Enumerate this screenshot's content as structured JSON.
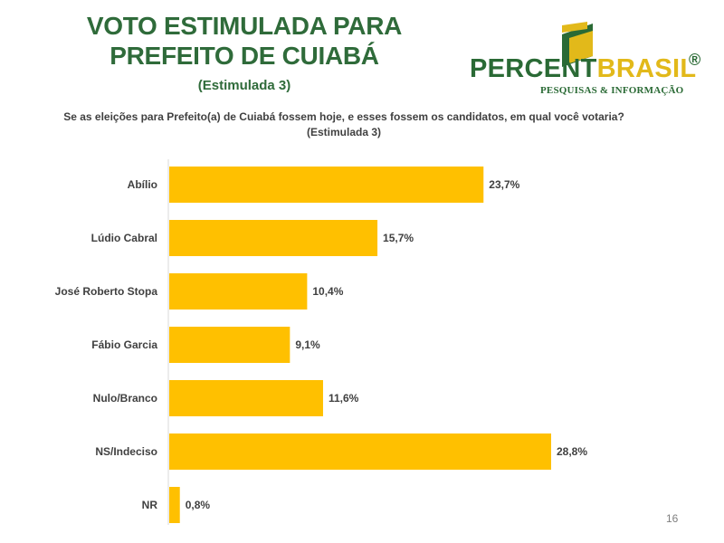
{
  "header": {
    "title_line1": "VOTO ESTIMULADA PARA",
    "title_line2": "PREFEITO DE CUIABÁ",
    "subtitle": "(Estimulada 3)",
    "question": "Se as eleições para Prefeito(a) de Cuiabá fossem hoje, e esses fossem os candidatos, em qual você votaria? (Estimulada 3)"
  },
  "logo": {
    "part1": "PERCENT",
    "part2": "BRASIL",
    "registered": "®",
    "tagline": "PESQUISAS & INFORMAÇÃO"
  },
  "page_number": "16",
  "colors": {
    "bar": "#ffc000",
    "title": "#2f6b3a",
    "brand_green": "#2a6a35",
    "brand_yellow": "#e2b91a"
  },
  "chart_data": {
    "type": "bar",
    "orientation": "horizontal",
    "categories": [
      "Abílio",
      "Lúdio Cabral",
      "José Roberto Stopa",
      "Fábio Garcia",
      "Nulo/Branco",
      "NS/Indeciso",
      "NR"
    ],
    "values": [
      23.7,
      15.7,
      10.4,
      9.1,
      11.6,
      28.8,
      0.8
    ],
    "value_labels": [
      "23,7%",
      "15,7%",
      "10,4%",
      "9,1%",
      "11,6%",
      "28,8%",
      "0,8%"
    ],
    "xlim": [
      0,
      30
    ],
    "grid": false,
    "legend": "none"
  }
}
